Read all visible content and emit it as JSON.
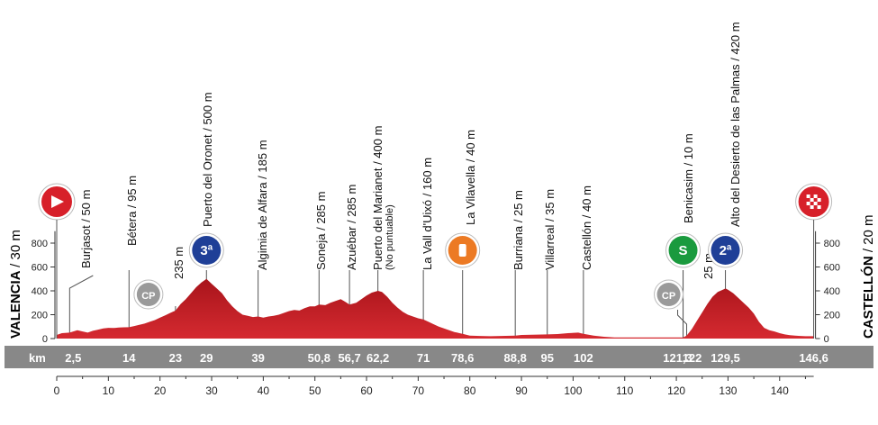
{
  "chart_data": {
    "type": "area",
    "title": "",
    "xlabel": "",
    "ylabel": "",
    "xlim": [
      0,
      146.6
    ],
    "ylim": [
      0,
      900
    ],
    "x_ticks": [
      0,
      10,
      20,
      30,
      40,
      50,
      60,
      70,
      80,
      90,
      100,
      110,
      120,
      130,
      140
    ],
    "y_ticks": [
      0,
      200,
      400,
      600,
      800
    ],
    "km_row_label": "km",
    "start": {
      "name": "VALENCIA",
      "altitude": "/ 30 m"
    },
    "finish": {
      "name": "CASTELLÓN",
      "altitude": "/ 20 m"
    },
    "km_labels": [
      "2,5",
      "14",
      "23",
      "29",
      "39",
      "50,8",
      "56,7",
      "62,2",
      "71",
      "78,6",
      "88,8",
      "95",
      "102",
      "121,3",
      "122",
      "129,5",
      "146,6"
    ],
    "profile": {
      "x": [
        0,
        1,
        2.5,
        4,
        5,
        6,
        7,
        8,
        9,
        10,
        11,
        12,
        13,
        14,
        15,
        16,
        17,
        18,
        19,
        20,
        21,
        22,
        23,
        24,
        25,
        26,
        27,
        28,
        29,
        30,
        31,
        32,
        33,
        34,
        35,
        36,
        37,
        38,
        39,
        40,
        41,
        42,
        43,
        44,
        45,
        46,
        47,
        48,
        49,
        50,
        50.8,
        52,
        53,
        54,
        55,
        56,
        56.7,
        58,
        59,
        60,
        61,
        62.2,
        63,
        64,
        65,
        66,
        67,
        68,
        69,
        70,
        71,
        72,
        73,
        74,
        75,
        76,
        77,
        78.6,
        80,
        82,
        84,
        86,
        88.8,
        90,
        92,
        95,
        97,
        99,
        101,
        102,
        104,
        106,
        108,
        110,
        112,
        114,
        116,
        118,
        119,
        120,
        121.3,
        122,
        123,
        124,
        125,
        126,
        127,
        128,
        129,
        129.5,
        130,
        131,
        132,
        133,
        134,
        135,
        136,
        137,
        138,
        139,
        140,
        141,
        142,
        143,
        144,
        145,
        146.6
      ],
      "y": [
        30,
        45,
        50,
        70,
        60,
        50,
        65,
        75,
        85,
        90,
        88,
        92,
        94,
        95,
        105,
        115,
        125,
        140,
        155,
        175,
        195,
        215,
        235,
        290,
        330,
        380,
        430,
        470,
        500,
        460,
        420,
        380,
        320,
        270,
        230,
        200,
        190,
        180,
        185,
        175,
        185,
        190,
        200,
        215,
        230,
        240,
        235,
        255,
        270,
        270,
        285,
        280,
        300,
        315,
        330,
        305,
        285,
        300,
        330,
        360,
        385,
        400,
        390,
        350,
        300,
        260,
        225,
        200,
        185,
        170,
        160,
        140,
        120,
        100,
        85,
        70,
        55,
        40,
        25,
        22,
        20,
        22,
        25,
        30,
        32,
        35,
        38,
        45,
        50,
        40,
        25,
        15,
        10,
        10,
        10,
        10,
        10,
        10,
        10,
        10,
        10,
        25,
        80,
        150,
        220,
        290,
        350,
        390,
        410,
        420,
        410,
        380,
        340,
        300,
        260,
        210,
        140,
        90,
        70,
        60,
        45,
        35,
        28,
        25,
        22,
        20,
        20
      ]
    },
    "waypoints": [
      {
        "km": 2.5,
        "label": "Burjasot / 50 m"
      },
      {
        "km": 14,
        "label": "Bétera / 95 m"
      },
      {
        "km": 23,
        "label": "235 m"
      },
      {
        "km": 29,
        "label": "Puerto del Oronet / 500 m"
      },
      {
        "km": 39,
        "label": "Algimia de Alfara / 185 m"
      },
      {
        "km": 50.8,
        "label": "Soneja / 285 m"
      },
      {
        "km": 56.7,
        "label": "Azuébar / 285 m"
      },
      {
        "km": 62.2,
        "label": "Puerto del Marianet / 400 m",
        "sublabel": "(No puntuable)"
      },
      {
        "km": 71,
        "label": "La Vall d'Uixó / 160 m"
      },
      {
        "km": 78.6,
        "label": "La Vilavella / 40 m"
      },
      {
        "km": 88.8,
        "label": "Burriana / 25 m"
      },
      {
        "km": 95,
        "label": "Villarreal / 35 m"
      },
      {
        "km": 102,
        "label": "Castellón / 40 m"
      },
      {
        "km": 121.3,
        "label": "Benicasim / 10 m"
      },
      {
        "km": 122,
        "label": "25 m"
      },
      {
        "km": 129.5,
        "label": "Alto del Desierto de las Palmas / 420 m"
      }
    ],
    "markers": [
      {
        "km": 0,
        "type": "start",
        "text": "",
        "color": "#d7202a"
      },
      {
        "km": 23,
        "type": "checkpoint",
        "text": "CP",
        "color": "#9a9a9a"
      },
      {
        "km": 29,
        "type": "climb",
        "text": "3ª",
        "color": "#1f3f97"
      },
      {
        "km": 78.6,
        "type": "feed",
        "text": "",
        "color": "#ec7a24"
      },
      {
        "km": 121.3,
        "type": "sprint",
        "text": "S",
        "color": "#1a9a3e"
      },
      {
        "km": 122,
        "type": "checkpoint",
        "text": "CP",
        "color": "#9a9a9a"
      },
      {
        "km": 129.5,
        "type": "climb",
        "text": "2ª",
        "color": "#1f3f97"
      },
      {
        "km": 146.6,
        "type": "finish",
        "text": "",
        "color": "#d7202a"
      }
    ],
    "colors": {
      "profile_fill": "#c8232a",
      "km_band": "#888888",
      "line": "#555555"
    }
  }
}
